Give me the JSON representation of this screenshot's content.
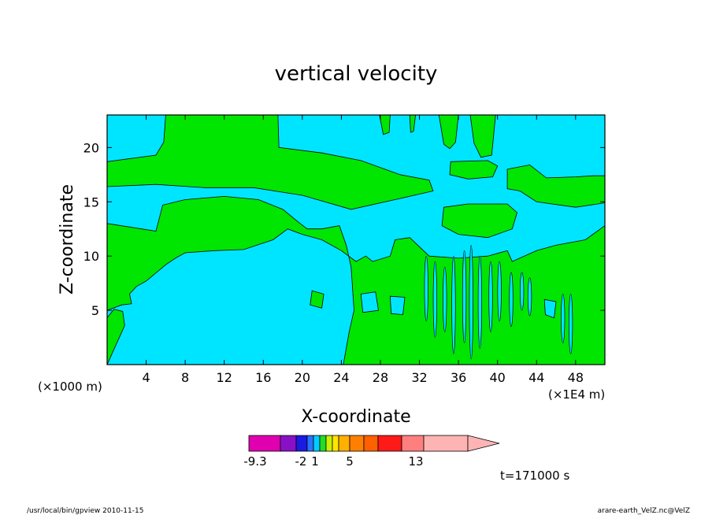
{
  "chart_data": {
    "type": "heatmap",
    "title": "vertical velocity",
    "xlabel": "X-coordinate",
    "ylabel": "Z-coordinate",
    "x_scale_note_left": "(×1000 m)",
    "x_scale_note_right": "(×1E4 m)",
    "xlim": [
      0,
      51
    ],
    "ylim": [
      0,
      23
    ],
    "x_ticks": [
      4,
      8,
      12,
      16,
      20,
      24,
      28,
      32,
      36,
      40,
      44,
      48
    ],
    "y_ticks": [
      5,
      10,
      15,
      20
    ],
    "colors": {
      "background_field": "#00e5ff",
      "contour_region": "#00e600",
      "contour_line": "#000000"
    },
    "colorbar": {
      "tick_labels": [
        "-9.3",
        "-2",
        "1",
        "5",
        "13"
      ],
      "colors": [
        "#e000b0",
        "#8a10c8",
        "#1a1ae0",
        "#2a72ff",
        "#00ccff",
        "#22dd22",
        "#c8f000",
        "#ffe600",
        "#ffb000",
        "#ff8000",
        "#ff6000",
        "#ff1a1a",
        "#ff7f7f",
        "#ffb4b4"
      ]
    },
    "time_label": "t=171000 s"
  },
  "footer": {
    "left": "/usr/local/bin/gpview   2010-11-15",
    "right": "arare-earth_VelZ.nc@VelZ"
  }
}
